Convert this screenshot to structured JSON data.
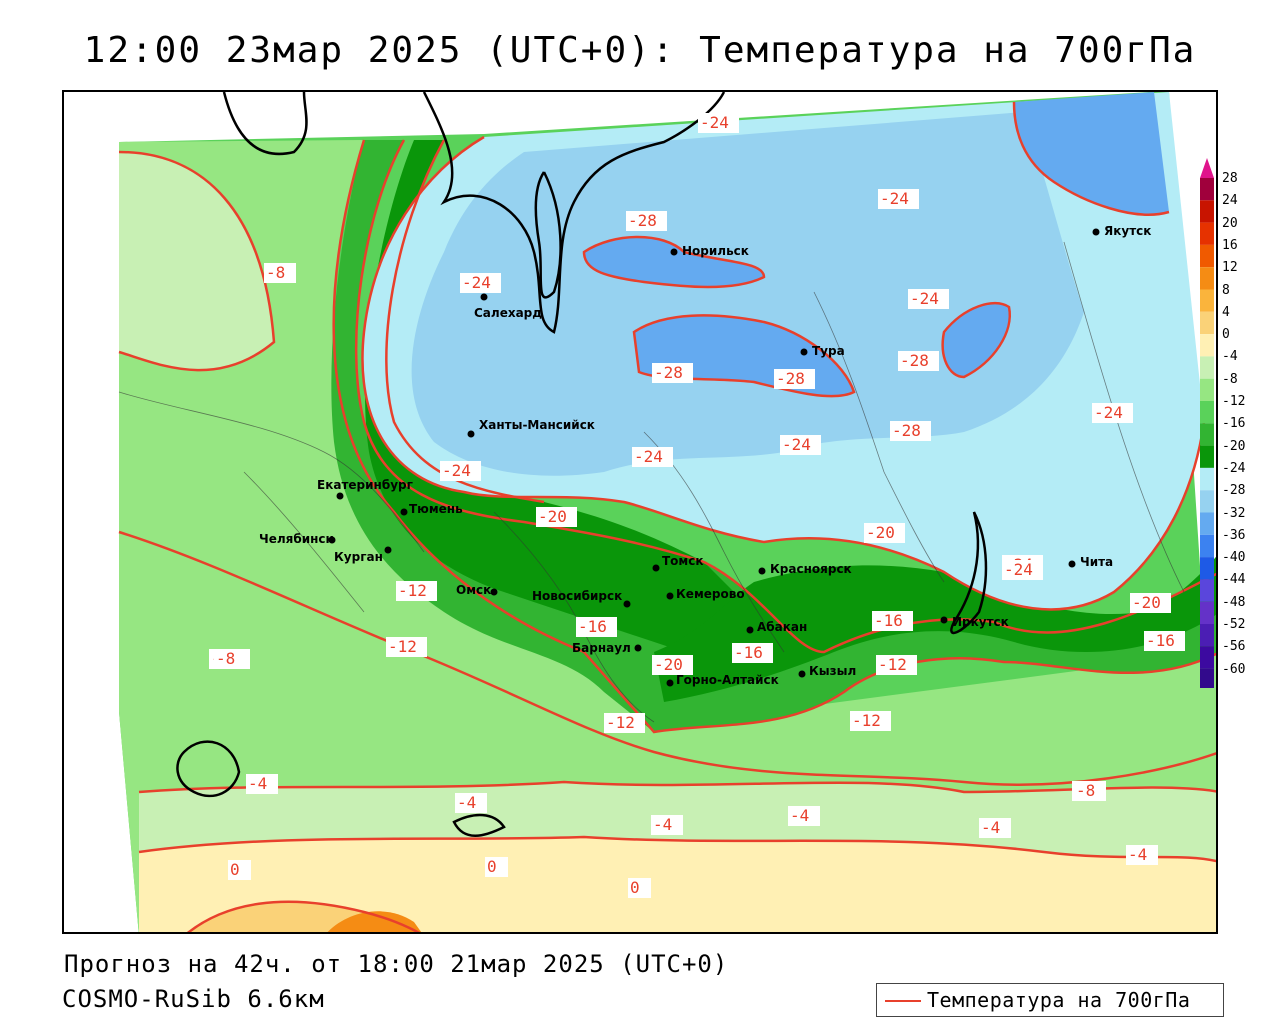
{
  "header": {
    "title": "12:00 23мар 2025 (UTC+0): Температура на 700гПа"
  },
  "footer": {
    "forecast_line": "Прогноз на 42ч. от 18:00 21мар 2025 (UTC+0)",
    "model_line": "COSMO-RuSib 6.6км"
  },
  "legend": {
    "contour_label": "Температура на 700гПа",
    "contour_color": "#e8402c"
  },
  "colorscale": {
    "labels": [
      "28",
      "24",
      "20",
      "16",
      "12",
      "8",
      "4",
      "0",
      "-4",
      "-8",
      "-12",
      "-16",
      "-20",
      "-24",
      "-28",
      "-32",
      "-36",
      "-40",
      "-44",
      "-48",
      "-52",
      "-56",
      "-60"
    ],
    "colors": [
      "#a0003c",
      "#c81400",
      "#e63200",
      "#f05a00",
      "#f58c14",
      "#fab43c",
      "#fad278",
      "#fff0b4",
      "#c8f0b4",
      "#96e682",
      "#5ad25a",
      "#32b432",
      "#0a960a",
      "#b4ecf6",
      "#96d2f0",
      "#64aaf0",
      "#3c82f0",
      "#1e5ae6",
      "#5a46dc",
      "#6432c8",
      "#4b1eb4",
      "#3c0aa0",
      "#320a8c"
    ]
  },
  "cities": [
    {
      "name": "Норильск"
    },
    {
      "name": "Якутск"
    },
    {
      "name": "Салехард"
    },
    {
      "name": "Тура"
    },
    {
      "name": "Ханты-Мансийск"
    },
    {
      "name": "Екатеринбург"
    },
    {
      "name": "Тюмень"
    },
    {
      "name": "Челябинск"
    },
    {
      "name": "Курган"
    },
    {
      "name": "Омск"
    },
    {
      "name": "Новосибирск"
    },
    {
      "name": "Томск"
    },
    {
      "name": "Кемерово"
    },
    {
      "name": "Красноярск"
    },
    {
      "name": "Абакан"
    },
    {
      "name": "Барнаул"
    },
    {
      "name": "Горно-Алтайск"
    },
    {
      "name": "Кызыл"
    },
    {
      "name": "Иркутск"
    },
    {
      "name": "Чита"
    }
  ],
  "isotherm_labels": [
    "-24",
    "-24",
    "-28",
    "-8",
    "-24",
    "-24",
    "-28",
    "-28",
    "-28",
    "-24",
    "-28",
    "-24",
    "-24",
    "-24",
    "-24",
    "-20",
    "-20",
    "-12",
    "-12",
    "-16",
    "-12",
    "-8",
    "-20",
    "-16",
    "-16",
    "-12",
    "-20",
    "-24",
    "-20",
    "-16",
    "-12",
    "-8",
    "-12",
    "-8",
    "-4",
    "-4",
    "-4",
    "-4",
    "-4",
    "-8",
    "-4",
    "0",
    "0",
    "0"
  ]
}
